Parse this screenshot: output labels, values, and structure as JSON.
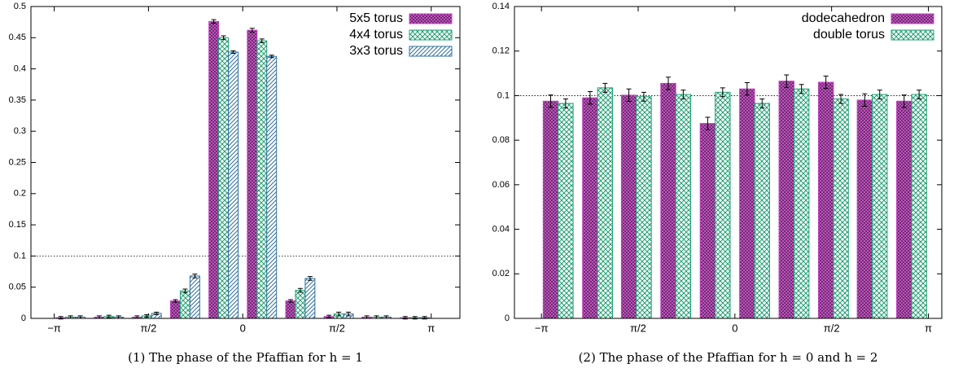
{
  "chart_data": [
    {
      "type": "bar",
      "caption": "(1) The phase of the Pfaffian for h = 1",
      "x": [
        -2.87,
        -2.23,
        -1.6,
        -0.96,
        -0.32,
        0.32,
        0.96,
        1.6,
        2.23,
        2.87
      ],
      "xlim": [
        -3.53,
        3.62
      ],
      "xticks": [
        {
          "value": -3.1416,
          "label": "−π"
        },
        {
          "value": -1.5708,
          "label": "π/2"
        },
        {
          "value": 0,
          "label": "0"
        },
        {
          "value": 1.5708,
          "label": "π/2"
        },
        {
          "value": 3.1416,
          "label": "π"
        }
      ],
      "ylim": [
        0,
        0.5
      ],
      "yticks": [
        0,
        0.05,
        0.1,
        0.15,
        0.2,
        0.25,
        0.3,
        0.35,
        0.4,
        0.45,
        0.5
      ],
      "hline": 0.1,
      "legend": "top-right",
      "series": [
        {
          "name": "5x5 torus",
          "color": "#c040c0",
          "values": [
            0.001,
            0.002,
            0.002,
            0.028,
            0.476,
            0.462,
            0.028,
            0.003,
            0.002,
            0.001
          ],
          "errors": [
            0.002,
            0.002,
            0.002,
            0.002,
            0.003,
            0.003,
            0.002,
            0.002,
            0.002,
            0.002
          ]
        },
        {
          "name": "4x4 torus",
          "color": "#20a070",
          "values": [
            0.002,
            0.003,
            0.004,
            0.044,
            0.45,
            0.445,
            0.045,
            0.007,
            0.002,
            0.001
          ],
          "errors": [
            0.002,
            0.002,
            0.002,
            0.003,
            0.003,
            0.003,
            0.003,
            0.003,
            0.002,
            0.002
          ]
        },
        {
          "name": "3x3 torus",
          "color": "#3070a0",
          "values": [
            0.002,
            0.002,
            0.008,
            0.068,
            0.427,
            0.42,
            0.064,
            0.007,
            0.002,
            0.001
          ],
          "errors": [
            0.002,
            0.002,
            0.002,
            0.003,
            0.002,
            0.002,
            0.003,
            0.003,
            0.002,
            0.002
          ]
        }
      ]
    },
    {
      "type": "bar",
      "caption": "(2) The phase of the Pfaffian for h = 0 and h = 2",
      "x": [
        -2.87,
        -2.23,
        -1.6,
        -0.96,
        -0.32,
        0.32,
        0.96,
        1.6,
        2.23,
        2.87
      ],
      "xlim": [
        -3.58,
        3.36
      ],
      "xticks": [
        {
          "value": -3.1416,
          "label": "−π"
        },
        {
          "value": -1.5708,
          "label": "π/2"
        },
        {
          "value": 0,
          "label": "0"
        },
        {
          "value": 1.5708,
          "label": "π/2"
        },
        {
          "value": 3.1416,
          "label": "π"
        }
      ],
      "ylim": [
        0,
        0.14
      ],
      "yticks": [
        0,
        0.02,
        0.04,
        0.06,
        0.08,
        0.1,
        0.12,
        0.14
      ],
      "hline": 0.1,
      "legend": "top-right",
      "series": [
        {
          "name": "dodecahedron",
          "color": "#c040c0",
          "values": [
            0.0975,
            0.099,
            0.1002,
            0.1055,
            0.0875,
            0.103,
            0.1065,
            0.106,
            0.098,
            0.0975
          ],
          "errors": [
            0.0028,
            0.0028,
            0.0028,
            0.0028,
            0.0028,
            0.0028,
            0.0028,
            0.0028,
            0.0028,
            0.0028
          ]
        },
        {
          "name": "double torus",
          "color": "#20a070",
          "values": [
            0.0965,
            0.1035,
            0.0995,
            0.1005,
            0.1015,
            0.0965,
            0.103,
            0.0985,
            0.1005,
            0.1005
          ],
          "errors": [
            0.002,
            0.002,
            0.002,
            0.002,
            0.002,
            0.002,
            0.002,
            0.002,
            0.002,
            0.002
          ]
        }
      ]
    }
  ]
}
